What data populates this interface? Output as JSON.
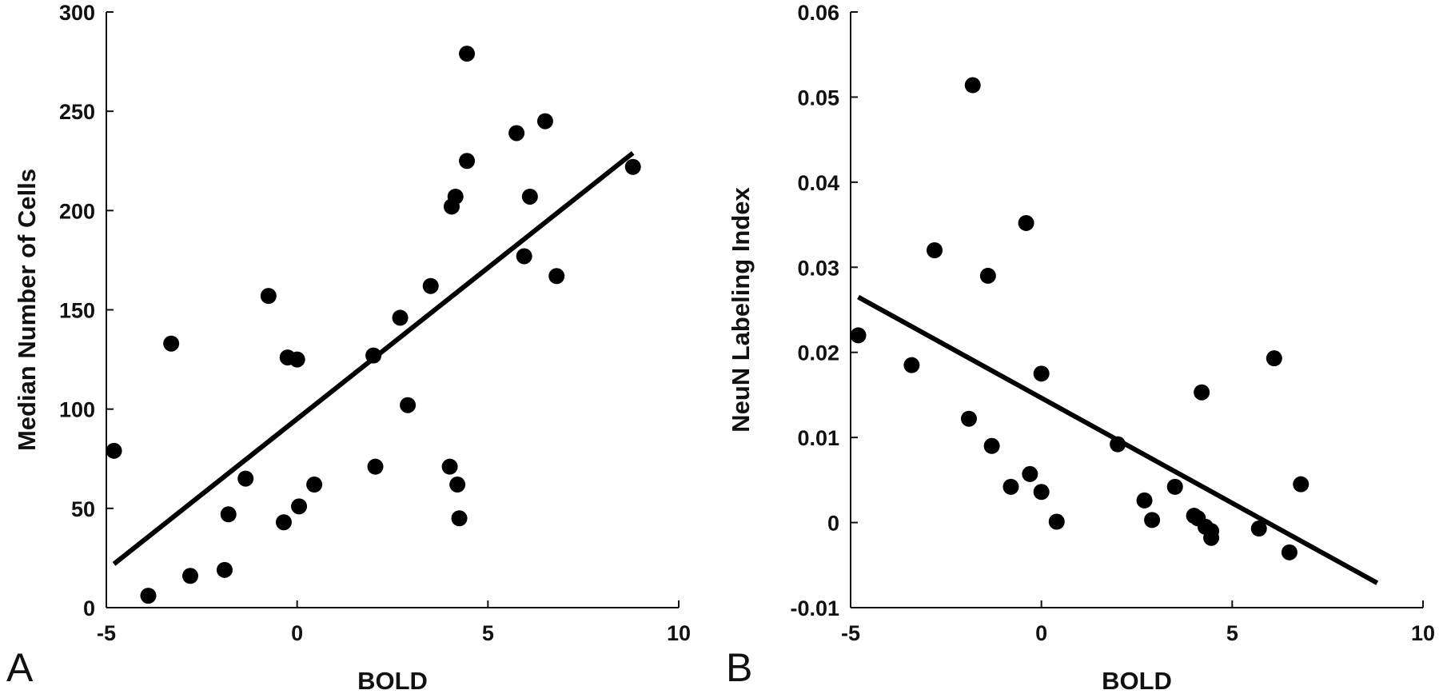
{
  "chart_data": [
    {
      "type": "scatter",
      "panel_label": "A",
      "xlabel": "BOLD",
      "ylabel": "Median Number of Cells",
      "xlim": [
        -5,
        10
      ],
      "ylim": [
        0,
        300
      ],
      "xticks": [
        -5,
        0,
        5,
        10
      ],
      "yticks": [
        0,
        50,
        100,
        150,
        200,
        250,
        300
      ],
      "xtick_labels": [
        "-5",
        "0",
        "5",
        "10"
      ],
      "ytick_labels": [
        "0",
        "50",
        "100",
        "150",
        "200",
        "250",
        "300"
      ],
      "grid": false,
      "series": [
        {
          "x": [
            -4.8,
            -3.9,
            -3.3,
            -2.8,
            -1.9,
            -1.8,
            -1.35,
            -0.75,
            -0.35,
            -0.25,
            0,
            0.05,
            0.45,
            2.0,
            2.05,
            2.7,
            2.9,
            3.5,
            4.0,
            4.05,
            4.15,
            4.2,
            4.25,
            4.45,
            4.45,
            5.75,
            5.95,
            6.1,
            6.5,
            6.8,
            8.8
          ],
          "y": [
            79,
            6,
            133,
            16,
            19,
            47,
            65,
            157,
            43,
            126,
            125,
            51,
            62,
            127,
            71,
            146,
            102,
            162,
            71,
            202,
            207,
            62,
            45,
            279,
            225,
            239,
            177,
            207,
            245,
            167,
            222
          ]
        }
      ],
      "fit_line": {
        "x": [
          -4.8,
          8.8
        ],
        "y": [
          22,
          229
        ]
      },
      "colors": {
        "points": "#000000",
        "line": "#000000",
        "axes": "#111111"
      }
    },
    {
      "type": "scatter",
      "panel_label": "B",
      "xlabel": "BOLD",
      "ylabel": "NeuN Labeling Index",
      "xlim": [
        -5,
        10
      ],
      "ylim": [
        -0.01,
        0.06
      ],
      "xticks": [
        -5,
        0,
        5,
        10
      ],
      "yticks": [
        -0.01,
        0,
        0.01,
        0.02,
        0.03,
        0.04,
        0.05,
        0.06
      ],
      "xtick_labels": [
        "-5",
        "0",
        "5",
        "10"
      ],
      "ytick_labels": [
        "-0.01",
        "0",
        "0.01",
        "0.02",
        "0.03",
        "0.04",
        "0.05",
        "0.06"
      ],
      "grid": false,
      "series": [
        {
          "x": [
            -4.8,
            -3.4,
            -2.8,
            -1.9,
            -1.8,
            -1.4,
            -1.3,
            -0.8,
            -0.4,
            -0.3,
            0,
            0,
            0.4,
            2.0,
            2.7,
            2.9,
            3.5,
            4.0,
            4.1,
            4.2,
            4.3,
            4.45,
            4.45,
            5.7,
            6.1,
            6.5,
            6.8
          ],
          "y": [
            0.022,
            0.0185,
            0.032,
            0.0122,
            0.0514,
            0.029,
            0.009,
            0.0042,
            0.0352,
            0.0057,
            0.0175,
            0.0036,
            0.0001,
            0.0092,
            0.0026,
            0.0003,
            0.0042,
            0.0008,
            0.0005,
            0.0153,
            -0.0005,
            -0.001,
            -0.0018,
            -0.0007,
            0.0193,
            -0.0035,
            0.0045
          ]
        }
      ],
      "fit_line": {
        "x": [
          -4.8,
          8.8
        ],
        "y": [
          0.0265,
          -0.0071
        ]
      },
      "colors": {
        "points": "#000000",
        "line": "#000000",
        "axes": "#111111"
      }
    }
  ]
}
